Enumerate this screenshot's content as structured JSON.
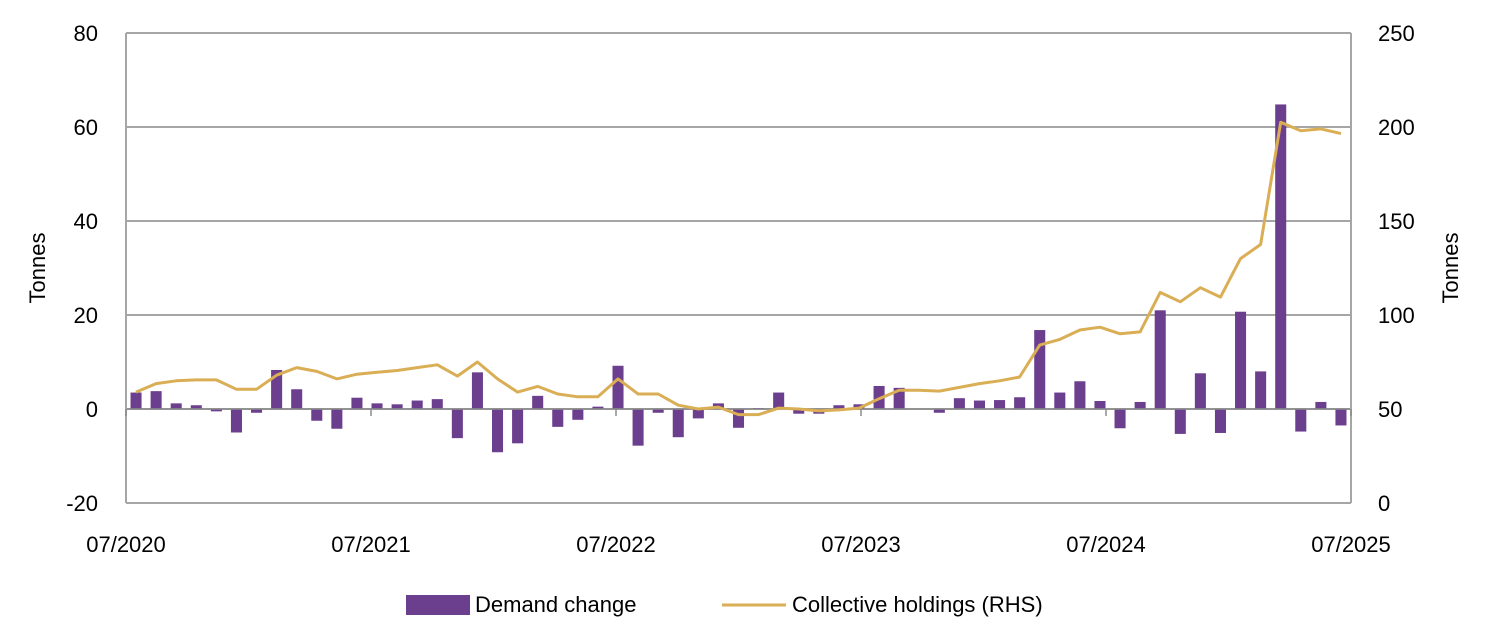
{
  "chart_data": {
    "type": "bar",
    "title": "",
    "x_tick_labels": [
      "07/2020",
      "07/2021",
      "07/2022",
      "07/2023",
      "07/2024",
      "07/2025"
    ],
    "y_left": {
      "label": "Tonnes",
      "ylim": [
        -20,
        80
      ],
      "ticks": [
        -20,
        0,
        20,
        40,
        60,
        80
      ]
    },
    "y_right": {
      "label": "Tonnes",
      "ylim": [
        0,
        250
      ],
      "ticks": [
        0,
        50,
        100,
        150,
        200,
        250
      ]
    },
    "grid": "horizontal",
    "legend_position": "bottom-center",
    "series": [
      {
        "name": "Demand change",
        "type": "bar",
        "axis": "left",
        "color": "#6B3F8E",
        "values": [
          3.5,
          3.8,
          1.2,
          0.8,
          -0.5,
          -5.0,
          -0.8,
          8.3,
          4.2,
          -2.5,
          -4.2,
          2.4,
          1.2,
          1.0,
          1.8,
          2.1,
          -6.2,
          7.8,
          -9.2,
          -7.3,
          2.8,
          -3.8,
          -2.3,
          0.5,
          9.2,
          -7.8,
          -0.8,
          -6.0,
          -2.0,
          1.2,
          -4.0,
          0.2,
          3.5,
          -1.0,
          -1.0,
          0.8,
          1.0,
          4.9,
          4.5,
          0.0,
          -0.8,
          2.3,
          1.8,
          1.9,
          2.5,
          16.8,
          3.5,
          5.9,
          1.7,
          -4.1,
          1.5,
          21.0,
          -5.3,
          7.6,
          -5.1,
          20.7,
          8.0,
          64.8,
          -4.8,
          1.5,
          -3.5
        ]
      },
      {
        "name": "Collective holdings (RHS)",
        "type": "line",
        "axis": "right",
        "color": "#D9AE55",
        "values": [
          59,
          63.5,
          65,
          65.5,
          65.5,
          60.5,
          60.5,
          68,
          72,
          70,
          66,
          68.5,
          69.5,
          70.5,
          72,
          73.5,
          67.5,
          75,
          66,
          59,
          62,
          58,
          56.5,
          56.5,
          66,
          58,
          58,
          52,
          50,
          51,
          47,
          47,
          50.5,
          50,
          49,
          49.5,
          50.5,
          55.5,
          60,
          60,
          59.5,
          61.5,
          63.5,
          65,
          67,
          84,
          87,
          92,
          93.5,
          90,
          91,
          112,
          107,
          114.5,
          109.5,
          130,
          137.5,
          202.5,
          198,
          199,
          196.5
        ]
      }
    ]
  }
}
